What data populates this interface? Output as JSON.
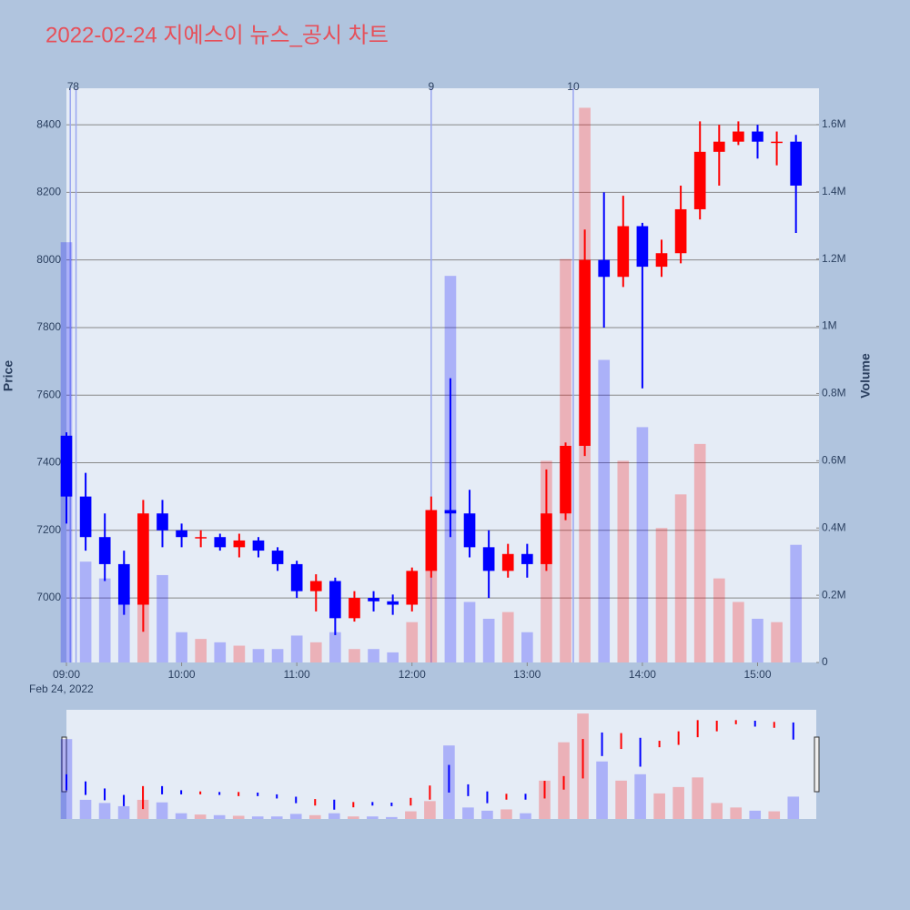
{
  "chart_data": {
    "type": "candlestick",
    "title": "2022-02-24 지에스이 뉴스_공시 차트",
    "y_label": "Price",
    "y2_label": "Volume",
    "x_date_label": "Feb 24, 2022",
    "x": [
      "09:00",
      "09:10",
      "09:20",
      "09:30",
      "09:40",
      "09:50",
      "10:00",
      "10:10",
      "10:20",
      "10:30",
      "10:40",
      "10:50",
      "11:00",
      "11:10",
      "11:20",
      "11:30",
      "11:40",
      "11:50",
      "12:00",
      "12:10",
      "12:20",
      "12:30",
      "12:40",
      "12:50",
      "13:00",
      "13:10",
      "13:20",
      "13:30",
      "13:40",
      "13:50",
      "14:00",
      "14:10",
      "14:20",
      "14:30",
      "14:40",
      "14:50",
      "15:00",
      "15:10",
      "15:20"
    ],
    "open": [
      7480,
      7300,
      7180,
      7100,
      6980,
      7250,
      7200,
      7180,
      7180,
      7150,
      7170,
      7140,
      7100,
      7020,
      7050,
      6940,
      7000,
      6990,
      6980,
      7080,
      7260,
      7250,
      7150,
      7080,
      7130,
      7100,
      7250,
      7450,
      8000,
      7950,
      8100,
      7980,
      8020,
      8150,
      8320,
      8350,
      8380,
      8350,
      8350
    ],
    "high": [
      7490,
      7370,
      7250,
      7140,
      7290,
      7290,
      7220,
      7200,
      7190,
      7190,
      7180,
      7150,
      7110,
      7070,
      7060,
      7020,
      7020,
      7010,
      7090,
      7300,
      7650,
      7320,
      7200,
      7160,
      7160,
      7380,
      7460,
      8090,
      8200,
      8190,
      8110,
      8060,
      8220,
      8410,
      8400,
      8410,
      8400,
      8380,
      8370
    ],
    "low": [
      7220,
      7140,
      7050,
      6950,
      6900,
      7150,
      7150,
      7150,
      7140,
      7120,
      7120,
      7080,
      7000,
      6960,
      6890,
      6930,
      6960,
      6950,
      6960,
      7060,
      7180,
      7120,
      7000,
      7060,
      7060,
      7080,
      7230,
      7420,
      7800,
      7920,
      7620,
      7950,
      7990,
      8120,
      8220,
      8340,
      8300,
      8280,
      8080
    ],
    "close": [
      7300,
      7180,
      7100,
      6980,
      7250,
      7200,
      7180,
      7180,
      7150,
      7170,
      7140,
      7100,
      7020,
      7050,
      6940,
      7000,
      6990,
      6980,
      7080,
      7260,
      7250,
      7150,
      7080,
      7130,
      7100,
      7250,
      7450,
      8000,
      7950,
      8100,
      7980,
      8020,
      8150,
      8320,
      8350,
      8380,
      8350,
      8350,
      8220
    ],
    "volume": [
      1250000,
      300000,
      250000,
      200000,
      300000,
      260000,
      90000,
      70000,
      60000,
      50000,
      40000,
      40000,
      80000,
      60000,
      90000,
      40000,
      40000,
      30000,
      120000,
      280000,
      1150000,
      180000,
      130000,
      150000,
      90000,
      600000,
      1200000,
      1650000,
      900000,
      600000,
      700000,
      400000,
      500000,
      650000,
      250000,
      180000,
      130000,
      120000,
      350000
    ],
    "up_color": "#ff0000",
    "down_color": "#0000ff",
    "xlim": [
      "09:00",
      "15:32"
    ],
    "xticks": [
      "09:00",
      "10:00",
      "11:00",
      "12:00",
      "13:00",
      "14:00",
      "15:00"
    ],
    "ylim": [
      6809,
      8508
    ],
    "yticks": [
      7000,
      7200,
      7400,
      7600,
      7800,
      8000,
      8200,
      8400
    ],
    "y2lim": [
      0,
      1708000
    ],
    "y2ticks": [
      0,
      {
        "value": 200000,
        "label": "0.2M"
      },
      {
        "value": 400000,
        "label": "0.4M"
      },
      {
        "value": 600000,
        "label": "0.6M"
      },
      {
        "value": 800000,
        "label": "0.8M"
      },
      {
        "value": 1000000,
        "label": "1M"
      },
      {
        "value": 1200000,
        "label": "1.2M"
      },
      {
        "value": 1400000,
        "label": "1.4M"
      },
      {
        "value": 1600000,
        "label": "1.6M"
      }
    ],
    "grid": true,
    "news": [
      {
        "x": "09:02",
        "label": "7"
      },
      {
        "x": "09:05",
        "label": "8"
      },
      {
        "x": "12:10",
        "label": "9"
      },
      {
        "x": "13:24",
        "label": "10"
      }
    ]
  }
}
